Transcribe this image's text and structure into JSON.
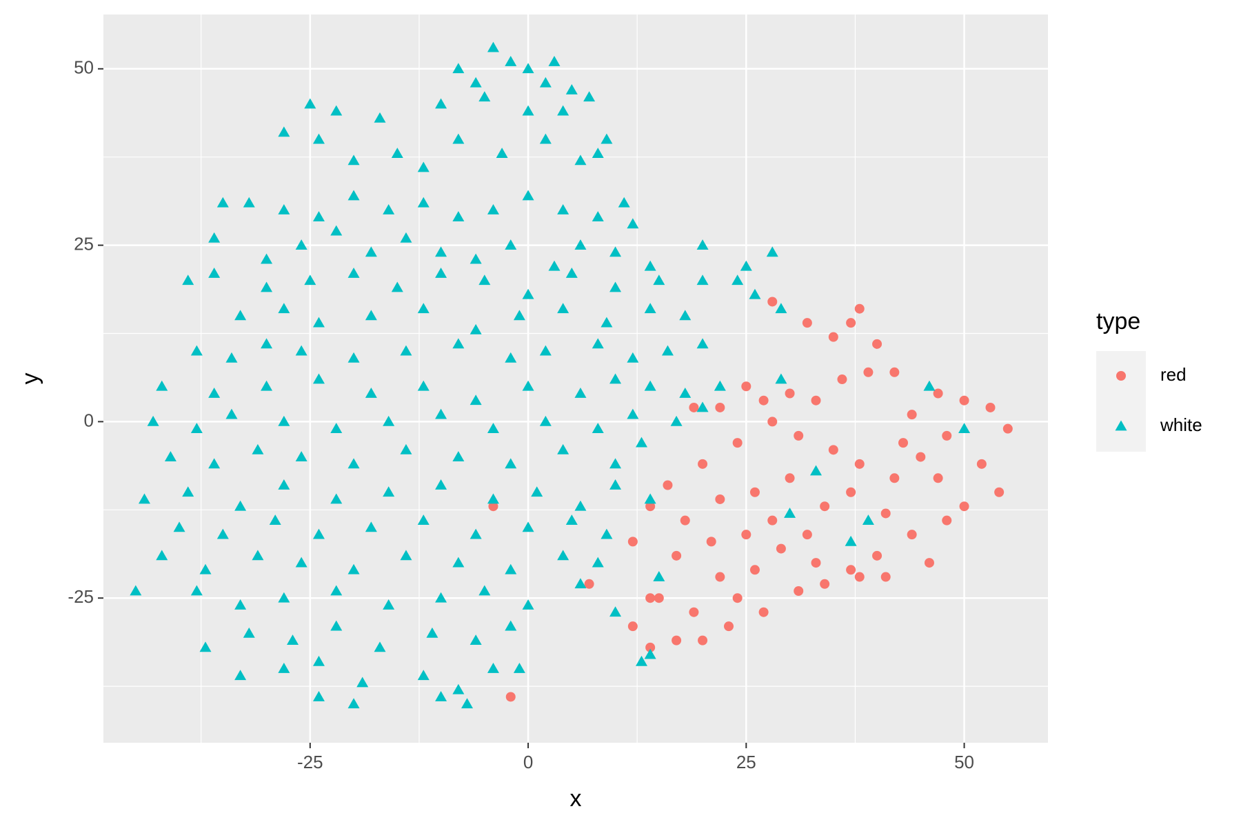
{
  "chart_data": {
    "type": "scatter",
    "x_label": "x",
    "y_label": "y",
    "xlim": [
      -48.7,
      59.6
    ],
    "ylim": [
      -45.5,
      57.7
    ],
    "xticks": [
      -25,
      0,
      25,
      50
    ],
    "yticks": [
      -25,
      0,
      25,
      50
    ],
    "x_minor_ticks": [
      -37.5,
      -12.5,
      12.5,
      37.5
    ],
    "y_minor_ticks": [
      -37.5,
      -12.5,
      12.5,
      37.5
    ],
    "grid": true,
    "legend_title": "type",
    "legend_position": "right",
    "series": [
      {
        "name": "red",
        "color": "#f8766d",
        "shape": "circle",
        "x": [
          38,
          37,
          35,
          32,
          28,
          40,
          42,
          39,
          36,
          30,
          25,
          22,
          19,
          27,
          33,
          44,
          47,
          50,
          53,
          55,
          52,
          54,
          48,
          45,
          42,
          38,
          35,
          31,
          28,
          24,
          20,
          16,
          14,
          18,
          22,
          26,
          30,
          34,
          37,
          41,
          44,
          48,
          50,
          47,
          43,
          40,
          37,
          33,
          29,
          25,
          21,
          17,
          15,
          19,
          23,
          27,
          31,
          34,
          38,
          41,
          46,
          20,
          17,
          14,
          24,
          28,
          32,
          26,
          22,
          12,
          12,
          7,
          -2,
          -4,
          14
        ],
        "y": [
          16,
          14,
          12,
          14,
          17,
          11,
          7,
          7,
          6,
          4,
          5,
          2,
          2,
          3,
          3,
          1,
          4,
          3,
          2,
          -1,
          -6,
          -10,
          -2,
          -5,
          -8,
          -6,
          -4,
          -2,
          0,
          -3,
          -6,
          -9,
          -12,
          -14,
          -11,
          -10,
          -8,
          -12,
          -10,
          -13,
          -16,
          -14,
          -12,
          -8,
          -3,
          -19,
          -21,
          -20,
          -18,
          -16,
          -17,
          -19,
          -25,
          -27,
          -29,
          -27,
          -24,
          -23,
          -22,
          -22,
          -20,
          -31,
          -31,
          -32,
          -25,
          -14,
          -16,
          -21,
          -22,
          -29,
          -17,
          -23,
          -39,
          -12,
          -25
        ]
      },
      {
        "name": "white",
        "color": "#00bfc4",
        "shape": "triangle",
        "x": [
          -4,
          -2,
          0,
          3,
          -8,
          -6,
          2,
          5,
          7,
          -25,
          -22,
          -17,
          -10,
          -5,
          0,
          4,
          8,
          9,
          -28,
          -24,
          -20,
          -15,
          -12,
          -8,
          -3,
          2,
          6,
          -35,
          -32,
          -28,
          -24,
          -20,
          -16,
          -12,
          -8,
          -4,
          0,
          4,
          8,
          11,
          12,
          -36,
          -30,
          -26,
          -22,
          -18,
          -14,
          -10,
          -6,
          -2,
          3,
          6,
          10,
          14,
          20,
          25,
          28,
          -39,
          -36,
          -30,
          -25,
          -20,
          -15,
          -10,
          -5,
          0,
          5,
          10,
          15,
          20,
          24,
          26,
          -33,
          -28,
          -24,
          -18,
          -12,
          -6,
          -1,
          4,
          9,
          14,
          18,
          29,
          -38,
          -34,
          -30,
          -26,
          -20,
          -14,
          -8,
          -2,
          2,
          8,
          12,
          16,
          20,
          -42,
          -36,
          -30,
          -24,
          -18,
          -12,
          -6,
          0,
          6,
          10,
          14,
          18,
          22,
          29,
          -43,
          -38,
          -34,
          -28,
          -22,
          -16,
          -10,
          -4,
          2,
          8,
          12,
          17,
          20,
          46,
          50,
          -41,
          -36,
          -31,
          -26,
          -20,
          -14,
          -8,
          -2,
          4,
          10,
          13,
          -44,
          -39,
          -33,
          -28,
          -22,
          -16,
          -10,
          -4,
          1,
          6,
          10,
          14,
          33,
          -40,
          -35,
          -29,
          -24,
          -18,
          -12,
          -6,
          0,
          5,
          9,
          30,
          39,
          -42,
          -37,
          -31,
          -26,
          -20,
          -14,
          -8,
          -2,
          4,
          8,
          15,
          37,
          -45,
          -38,
          -33,
          -28,
          -22,
          -16,
          -10,
          -5,
          0,
          6,
          10,
          -37,
          -32,
          -27,
          -22,
          -17,
          -11,
          -6,
          -2,
          13,
          14,
          -33,
          -28,
          -24,
          -19,
          -12,
          -8,
          -4,
          -1,
          -24,
          -20,
          -10,
          -7
        ],
        "y": [
          53,
          51,
          50,
          51,
          50,
          48,
          48,
          47,
          46,
          45,
          44,
          43,
          45,
          46,
          44,
          44,
          38,
          40,
          41,
          40,
          37,
          38,
          36,
          40,
          38,
          40,
          37,
          31,
          31,
          30,
          29,
          32,
          30,
          31,
          29,
          30,
          32,
          30,
          29,
          31,
          28,
          26,
          23,
          25,
          27,
          24,
          26,
          24,
          23,
          25,
          22,
          25,
          24,
          22,
          25,
          22,
          24,
          20,
          21,
          19,
          20,
          21,
          19,
          21,
          20,
          18,
          21,
          19,
          20,
          20,
          20,
          18,
          15,
          16,
          14,
          15,
          16,
          13,
          15,
          16,
          14,
          16,
          15,
          16,
          10,
          9,
          11,
          10,
          9,
          10,
          11,
          9,
          10,
          11,
          9,
          10,
          11,
          5,
          4,
          5,
          6,
          4,
          5,
          3,
          5,
          4,
          6,
          5,
          4,
          5,
          6,
          0,
          -1,
          1,
          0,
          -1,
          0,
          1,
          -1,
          0,
          -1,
          1,
          0,
          2,
          5,
          -1,
          -5,
          -6,
          -4,
          -5,
          -6,
          -4,
          -5,
          -6,
          -4,
          -6,
          -3,
          -11,
          -10,
          -12,
          -9,
          -11,
          -10,
          -9,
          -11,
          -10,
          -12,
          -9,
          -11,
          -7,
          -15,
          -16,
          -14,
          -16,
          -15,
          -14,
          -16,
          -15,
          -14,
          -16,
          -13,
          -14,
          -19,
          -21,
          -19,
          -20,
          -21,
          -19,
          -20,
          -21,
          -19,
          -20,
          -22,
          -17,
          -24,
          -24,
          -26,
          -25,
          -24,
          -26,
          -25,
          -24,
          -26,
          -23,
          -27,
          -32,
          -30,
          -31,
          -29,
          -32,
          -30,
          -31,
          -29,
          -34,
          -33,
          -36,
          -35,
          -34,
          -37,
          -36,
          -38,
          -35,
          -35,
          -39,
          -40,
          -39,
          -40
        ]
      }
    ]
  }
}
